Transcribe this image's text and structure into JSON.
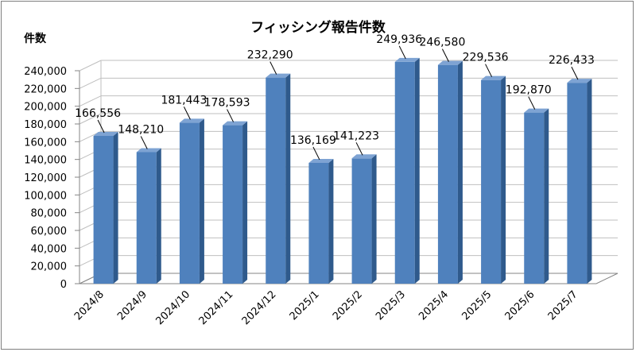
{
  "chart_data": {
    "type": "bar",
    "title": "フィッシング報告件数",
    "ylabel": "件数",
    "xlabel": "",
    "categories": [
      "2024/8",
      "2024/9",
      "2024/10",
      "2024/11",
      "2024/12",
      "2025/1",
      "2025/2",
      "2025/3",
      "2025/4",
      "2025/5",
      "2025/6",
      "2025/7"
    ],
    "values": [
      166556,
      148210,
      181443,
      178593,
      232290,
      136169,
      141223,
      249936,
      246580,
      229536,
      192870,
      226433
    ],
    "data_labels": [
      "166,556",
      "148,210",
      "181,443",
      "178,593",
      "232,290",
      "136,169",
      "141,223",
      "249,936",
      "246,580",
      "229,536",
      "192,870",
      "226,433"
    ],
    "y_ticks": [
      "0",
      "20,000",
      "40,000",
      "60,000",
      "80,000",
      "100,000",
      "120,000",
      "140,000",
      "160,000",
      "180,000",
      "200,000",
      "220,000",
      "240,000"
    ],
    "ylim": [
      0,
      240000
    ],
    "grid": true,
    "style": "3d-column",
    "colors": {
      "bar_front": "#4f81bd",
      "bar_side": "#2f5a8c",
      "bar_top": "#7ea3d3",
      "gridline": "#bfbfbf",
      "axis": "#868686",
      "frame": "#7f7f7f"
    }
  }
}
